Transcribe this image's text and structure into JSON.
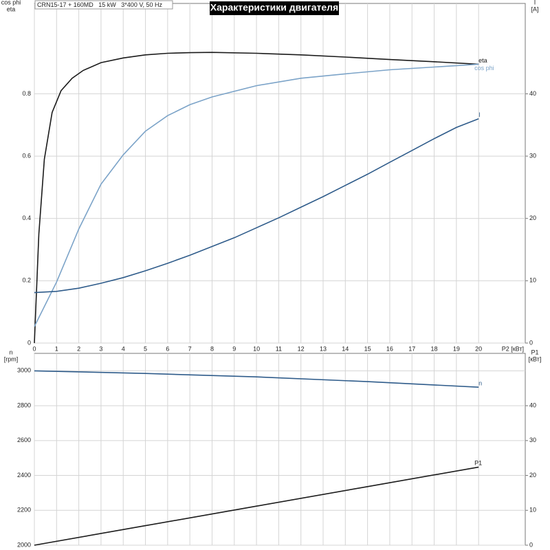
{
  "chart_data": [
    {
      "type": "line",
      "title": "Характеристики двигателя",
      "subtitle": "CRN15-17 + 160MD   15 kW   3*400 V, 50 Hz",
      "xlabel": "P2 [кВт]",
      "ylabel": [
        "cos phi",
        "eta"
      ],
      "y2label": [
        "I",
        "[A]"
      ],
      "xlim": [
        0,
        22.1
      ],
      "xticks": [
        0,
        1,
        2,
        3,
        4,
        5,
        6,
        7,
        8,
        9,
        10,
        11,
        12,
        13,
        14,
        15,
        16,
        17,
        18,
        19,
        20
      ],
      "xtick_labels": true,
      "ylim": [
        0,
        1.09
      ],
      "yticks": [
        0,
        0.2,
        0.4,
        0.6,
        0.8
      ],
      "y2lim": [
        0,
        54.5
      ],
      "y2ticks": [
        0,
        10,
        20,
        30,
        40
      ],
      "grid": true,
      "series": [
        {
          "name": "eta",
          "color": "#1a1a1a",
          "x": [
            0,
            0.2,
            0.45,
            0.8,
            1.2,
            1.7,
            2.2,
            3,
            4,
            5,
            6,
            7,
            8,
            10,
            12,
            14,
            16,
            18,
            20
          ],
          "values": [
            0,
            0.35,
            0.59,
            0.74,
            0.81,
            0.85,
            0.875,
            0.9,
            0.915,
            0.925,
            0.93,
            0.932,
            0.933,
            0.93,
            0.925,
            0.918,
            0.91,
            0.903,
            0.895
          ]
        },
        {
          "name": "cos phi",
          "color": "#7ba3c8",
          "x": [
            0,
            1,
            2,
            3,
            4,
            5,
            6,
            7,
            8,
            10,
            12,
            14,
            16,
            18,
            20
          ],
          "values": [
            0.053,
            0.196,
            0.366,
            0.51,
            0.604,
            0.68,
            0.73,
            0.765,
            0.79,
            0.826,
            0.85,
            0.864,
            0.877,
            0.886,
            0.895
          ]
        },
        {
          "name": "I",
          "color": "#2e5b8a",
          "axis": "y2",
          "x": [
            0,
            1,
            2,
            3,
            4,
            5,
            6,
            7,
            8,
            9,
            10,
            11,
            12,
            13,
            14,
            15,
            16,
            17,
            18,
            19,
            20
          ],
          "values": [
            8.1,
            8.3,
            8.8,
            9.6,
            10.5,
            11.6,
            12.8,
            14.1,
            15.5,
            16.9,
            18.5,
            20.1,
            21.8,
            23.5,
            25.3,
            27.1,
            29.0,
            30.9,
            32.8,
            34.6,
            36.0
          ]
        }
      ]
    },
    {
      "type": "line",
      "ylabel": [
        "n",
        "[rpm]"
      ],
      "y2label": [
        "P1",
        "[кВт]"
      ],
      "xlim": [
        0,
        22.1
      ],
      "xticks": [
        0,
        1,
        2,
        3,
        4,
        5,
        6,
        7,
        8,
        9,
        10,
        11,
        12,
        13,
        14,
        15,
        16,
        17,
        18,
        19,
        20
      ],
      "xtick_labels": false,
      "ylim": [
        2000,
        3100
      ],
      "yticks": [
        2000,
        2200,
        2400,
        2600,
        2800,
        3000
      ],
      "y2lim": [
        0,
        55
      ],
      "y2ticks": [
        0,
        10,
        20,
        30,
        40
      ],
      "grid": true,
      "series": [
        {
          "name": "n",
          "color": "#2e5b8a",
          "x": [
            0,
            5,
            10,
            15,
            20
          ],
          "values": [
            3000,
            2985,
            2965,
            2938,
            2906
          ]
        },
        {
          "name": "P1",
          "color": "#1a1a1a",
          "axis": "y2",
          "x": [
            0,
            5,
            10,
            15,
            20
          ],
          "values": [
            0,
            5.6,
            11.2,
            16.8,
            22.4
          ]
        }
      ]
    }
  ]
}
